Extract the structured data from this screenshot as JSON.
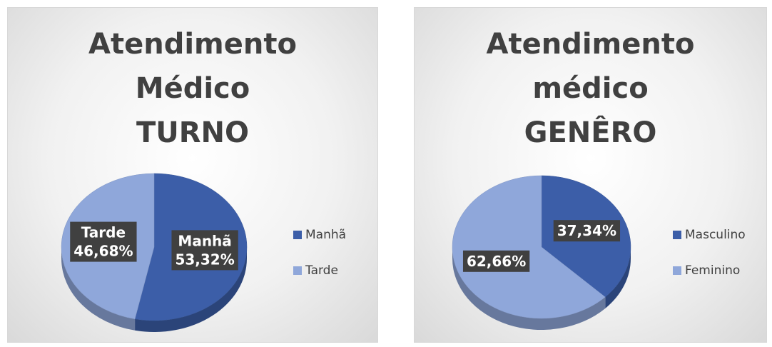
{
  "chart_data": [
    {
      "type": "pie",
      "title": "Atendimento Médico TURNO",
      "categories": [
        "Manhã",
        "Tarde"
      ],
      "values": [
        53.32,
        46.68
      ],
      "value_labels": [
        "53,32%",
        "46,68%"
      ],
      "colors": [
        "#3c5ea8",
        "#8fa7da"
      ],
      "show_category_in_label": true,
      "legend": "right"
    },
    {
      "type": "pie",
      "title": "Atendimento médico GENÊRO",
      "categories": [
        "Masculino",
        "Feminino"
      ],
      "values": [
        37.34,
        62.66
      ],
      "value_labels": [
        "37,34%",
        "62,66%"
      ],
      "colors": [
        "#3c5ea8",
        "#8fa7da"
      ],
      "show_category_in_label": false,
      "legend": "right"
    }
  ]
}
